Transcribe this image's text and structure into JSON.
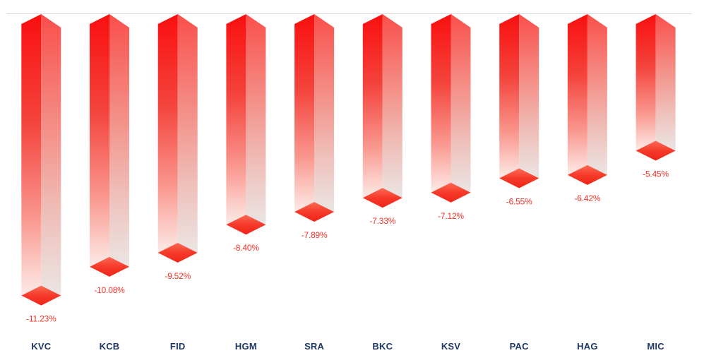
{
  "chart_data": {
    "type": "bar",
    "subtype": "3d-obelisk-columns-hanging-negative",
    "title": "",
    "xlabel": "",
    "ylabel": "",
    "categories": [
      "KVC",
      "KCB",
      "FID",
      "HGM",
      "SRA",
      "BKC",
      "KSV",
      "PAC",
      "HAG",
      "MIC"
    ],
    "values": [
      -11.23,
      -10.08,
      -9.52,
      -8.4,
      -7.89,
      -7.33,
      -7.12,
      -6.55,
      -6.42,
      -5.45
    ],
    "labels": [
      "-11.23%",
      "-10.08%",
      "-9.52%",
      "-8.40%",
      "-7.89%",
      "-7.33%",
      "-7.12%",
      "-6.55%",
      "-6.42%",
      "-5.45%"
    ],
    "ylim": [
      -12,
      0
    ],
    "grid": false,
    "legend": "none",
    "baseline": "zero line at top, bars hang downward",
    "colors": {
      "bar_red_top": "#f90f0f",
      "bar_red_side_top": "#fa4f4b",
      "bar_fade_left_bottom": "#fdebe7",
      "bar_fade_right_bottom": "#eae5e4",
      "diamond_top": "#fb6a55",
      "diamond_bottom": "#f02418",
      "value_label": "#f53229",
      "ticker_label": "#1f3864",
      "zero_line": "#d9d9d9"
    }
  }
}
